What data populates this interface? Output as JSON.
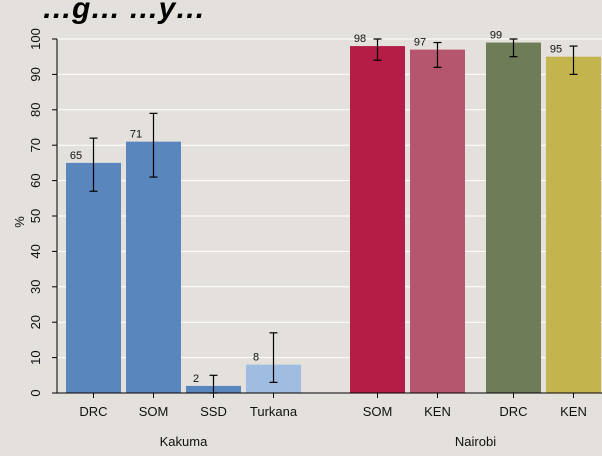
{
  "chart_data": {
    "type": "bar",
    "title": "…g… …y…",
    "ylabel": "%",
    "ylim": [
      0,
      100
    ],
    "yticks": [
      0,
      10,
      20,
      30,
      40,
      50,
      60,
      70,
      80,
      90,
      100
    ],
    "grid": true,
    "groups": [
      {
        "label": "Kakuma",
        "categories": [
          "DRC",
          "SOM",
          "SSD",
          "Turkana"
        ]
      },
      {
        "label": "Nairobi",
        "categories": [
          "SOM",
          "KEN",
          "DRC",
          "KEN"
        ]
      }
    ],
    "bars": [
      {
        "category": "DRC",
        "value": 65,
        "ci_low": 57,
        "ci_high": 72,
        "color": "#5a86be"
      },
      {
        "category": "SOM",
        "value": 71,
        "ci_low": 61,
        "ci_high": 79,
        "color": "#5a86be"
      },
      {
        "category": "SSD",
        "value": 2,
        "ci_low": 0,
        "ci_high": 5,
        "color": "#5a86be"
      },
      {
        "category": "Turkana",
        "value": 8,
        "ci_low": 3,
        "ci_high": 17,
        "color": "#9fbde0"
      },
      {
        "category": "SOM",
        "value": 98,
        "ci_low": 94,
        "ci_high": 100,
        "color": "#b31d46"
      },
      {
        "category": "KEN",
        "value": 97,
        "ci_low": 92,
        "ci_high": 99,
        "color": "#b5566e"
      },
      {
        "category": "DRC",
        "value": 99,
        "ci_low": 95,
        "ci_high": 100,
        "color": "#6f7c58"
      },
      {
        "category": "KEN",
        "value": 95,
        "ci_low": 90,
        "ci_high": 98,
        "color": "#c4b44e"
      }
    ]
  }
}
